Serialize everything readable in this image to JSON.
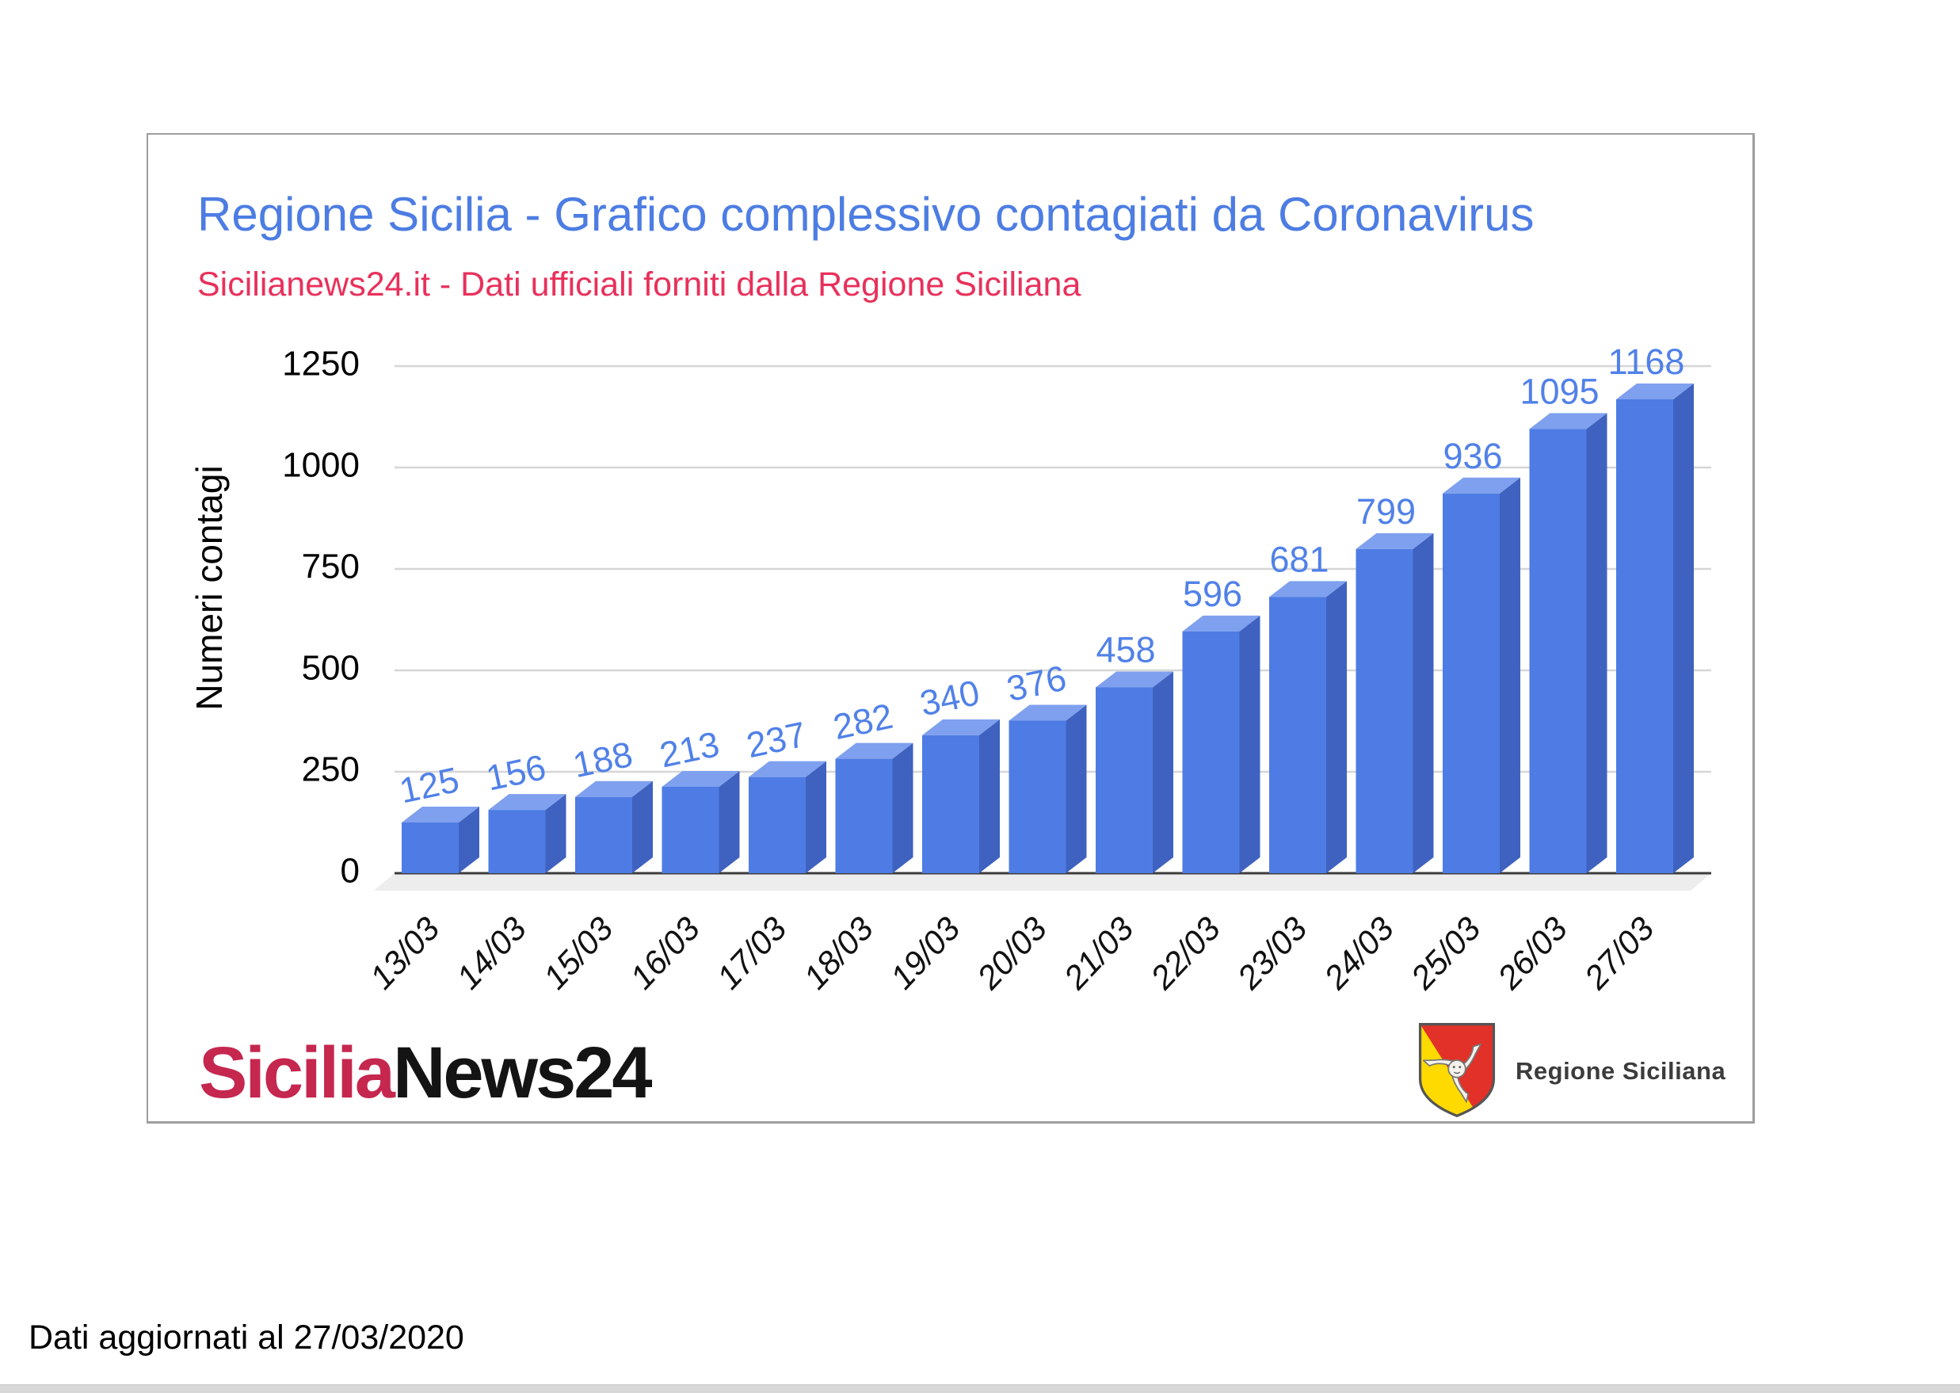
{
  "chart_data": {
    "type": "bar",
    "style": "3d-column",
    "title": "Regione Sicilia - Grafico complessivo contagiati da Coronavirus",
    "subtitle": "Sicilianews24.it - Dati ufficiali forniti dalla Regione Siciliana",
    "categories": [
      "13/03",
      "14/03",
      "15/03",
      "16/03",
      "17/03",
      "18/03",
      "19/03",
      "20/03",
      "21/03",
      "22/03",
      "23/03",
      "24/03",
      "25/03",
      "26/03",
      "27/03"
    ],
    "values": [
      125,
      156,
      188,
      213,
      237,
      282,
      340,
      376,
      458,
      596,
      681,
      799,
      936,
      1095,
      1168
    ],
    "xlabel": "",
    "ylabel": "Numeri contagi",
    "yticks": [
      0,
      250,
      500,
      750,
      1000,
      1250
    ],
    "ylim": [
      0,
      1250
    ],
    "grid": true,
    "legend": "none",
    "colors": {
      "title": "#4d7de3",
      "subtitle": "#e8315b",
      "bar_front": "#4e7ce4",
      "bar_top": "#7fa0ee",
      "bar_side": "#3f62c0",
      "value_label": "#5181e8",
      "axis_text": "#000000",
      "gridline": "#d6d6d6",
      "baseline": "#3c3c3c",
      "floor": "#ededed"
    }
  },
  "branding": {
    "logo_part1": "Sicilia",
    "logo_part2": "News24",
    "logo_part1_color": "#c5274f",
    "logo_part2_color": "#141414",
    "regione_label": "Regione Siciliana",
    "shield_colors": {
      "yellow": "#ffda00",
      "red": "#e13128",
      "outline": "#555555"
    }
  },
  "footer": {
    "updated_text": "Dati aggiornati al 27/03/2020"
  }
}
